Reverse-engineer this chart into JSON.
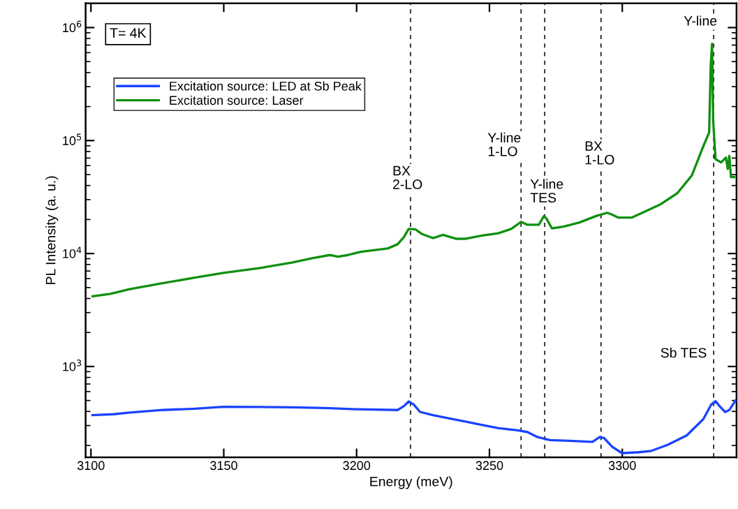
{
  "chart_data": {
    "type": "line",
    "xlabel": "Energy (meV)",
    "ylabel": "PL Intensity (a. u.)",
    "log": "y",
    "xlim": [
      3098,
      3343
    ],
    "xticks": [
      3100,
      3150,
      3200,
      3250,
      3300
    ],
    "ylim": [
      157,
      1640000
    ],
    "yticks": [
      {
        "value": 1000,
        "label": "10$^{3}$"
      },
      {
        "value": 10000,
        "label": "10$^{4}$"
      },
      {
        "value": 100000,
        "label": "10$^{5}$"
      },
      {
        "value": 1000000,
        "label": "10$^{6}$"
      }
    ],
    "grid": false,
    "legend": "top left",
    "line_style": "solid",
    "marker": "none",
    "series": [
      {
        "name": "Excitation source: LED at Sb Peak",
        "color": "#1a44ff",
        "x": [
          3100.6,
          3108.5,
          3114.6,
          3126.9,
          3139.1,
          3149.8,
          3163.6,
          3175.9,
          3188.1,
          3200.4,
          3215.4,
          3217.8,
          3219.6,
          3221.5,
          3223.9,
          3228.8,
          3235.0,
          3241.1,
          3247.2,
          3253.3,
          3260.7,
          3264.3,
          3268.0,
          3272.9,
          3280.3,
          3288.8,
          3291.5,
          3293.1,
          3296.2,
          3299.9,
          3306.0,
          3310.9,
          3317.0,
          3324.3,
          3330.5,
          3333.5,
          3335.1,
          3336.6,
          3338.7,
          3340.3,
          3342.7
        ],
        "values": [
          371,
          378,
          391,
          412,
          423,
          440,
          438,
          435,
          429,
          418,
          412,
          446,
          490,
          461,
          396,
          371,
          347,
          325,
          304,
          285,
          272,
          263,
          238,
          223,
          220,
          215,
          238,
          233,
          195,
          171,
          174,
          179,
          202,
          246,
          342,
          461,
          493,
          446,
          396,
          412,
          503
        ]
      },
      {
        "name": "Excitation source: Laser",
        "color": "#109010",
        "x": [
          3100.6,
          3107.3,
          3114.6,
          3126.9,
          3139.1,
          3149.8,
          3163.6,
          3175.9,
          3183.2,
          3190.0,
          3193.0,
          3196.7,
          3201.6,
          3211.7,
          3215.4,
          3217.8,
          3219.6,
          3222.1,
          3224.5,
          3228.8,
          3232.5,
          3237.4,
          3241.1,
          3247.2,
          3253.3,
          3258.2,
          3261.9,
          3264.3,
          3268.6,
          3270.5,
          3271.4,
          3273.5,
          3277.8,
          3283.9,
          3290.1,
          3294.3,
          3295.9,
          3298.6,
          3303.5,
          3308.4,
          3314.6,
          3320.7,
          3326.2,
          3330.5,
          3332.7,
          3333.3,
          3333.8,
          3334.2,
          3335.1,
          3337.2,
          3339.0,
          3339.7,
          3340.3,
          3340.9,
          3342.1
        ],
        "values": [
          4180,
          4390,
          4840,
          5460,
          6110,
          6740,
          7450,
          8340,
          9080,
          9700,
          9390,
          9700,
          10370,
          11080,
          12070,
          13970,
          16490,
          16380,
          14930,
          13700,
          14630,
          13510,
          13510,
          14440,
          15120,
          16490,
          19070,
          17970,
          17970,
          21480,
          20510,
          16710,
          17270,
          18820,
          21480,
          22950,
          22210,
          20780,
          20780,
          23410,
          27450,
          34170,
          49160,
          89210,
          117800,
          467000,
          718500,
          151500,
          68450,
          64080,
          70760,
          56140,
          73130,
          47560,
          47560
        ]
      }
    ],
    "ref_lines": [
      {
        "axis": "x",
        "value": 3220.3,
        "color": "#000000",
        "line_style": "dashed",
        "label": "BX\n2-LO"
      },
      {
        "axis": "x",
        "value": 3261.9,
        "color": "#000000",
        "line_style": "dashed",
        "label": "Y-line\n1-LO"
      },
      {
        "axis": "x",
        "value": 3270.8,
        "color": "#000000",
        "line_style": "dashed",
        "label": "Y-line\nTES"
      },
      {
        "axis": "x",
        "value": 3292.0,
        "color": "#000000",
        "line_style": "dashed",
        "label": "BX\n1-LO"
      },
      {
        "axis": "x",
        "value": 3334.4,
        "color": "#000000",
        "line_style": "dashed",
        "label": "Y-line"
      }
    ],
    "annotations": [
      "T= 4K",
      "Sb TES"
    ]
  }
}
